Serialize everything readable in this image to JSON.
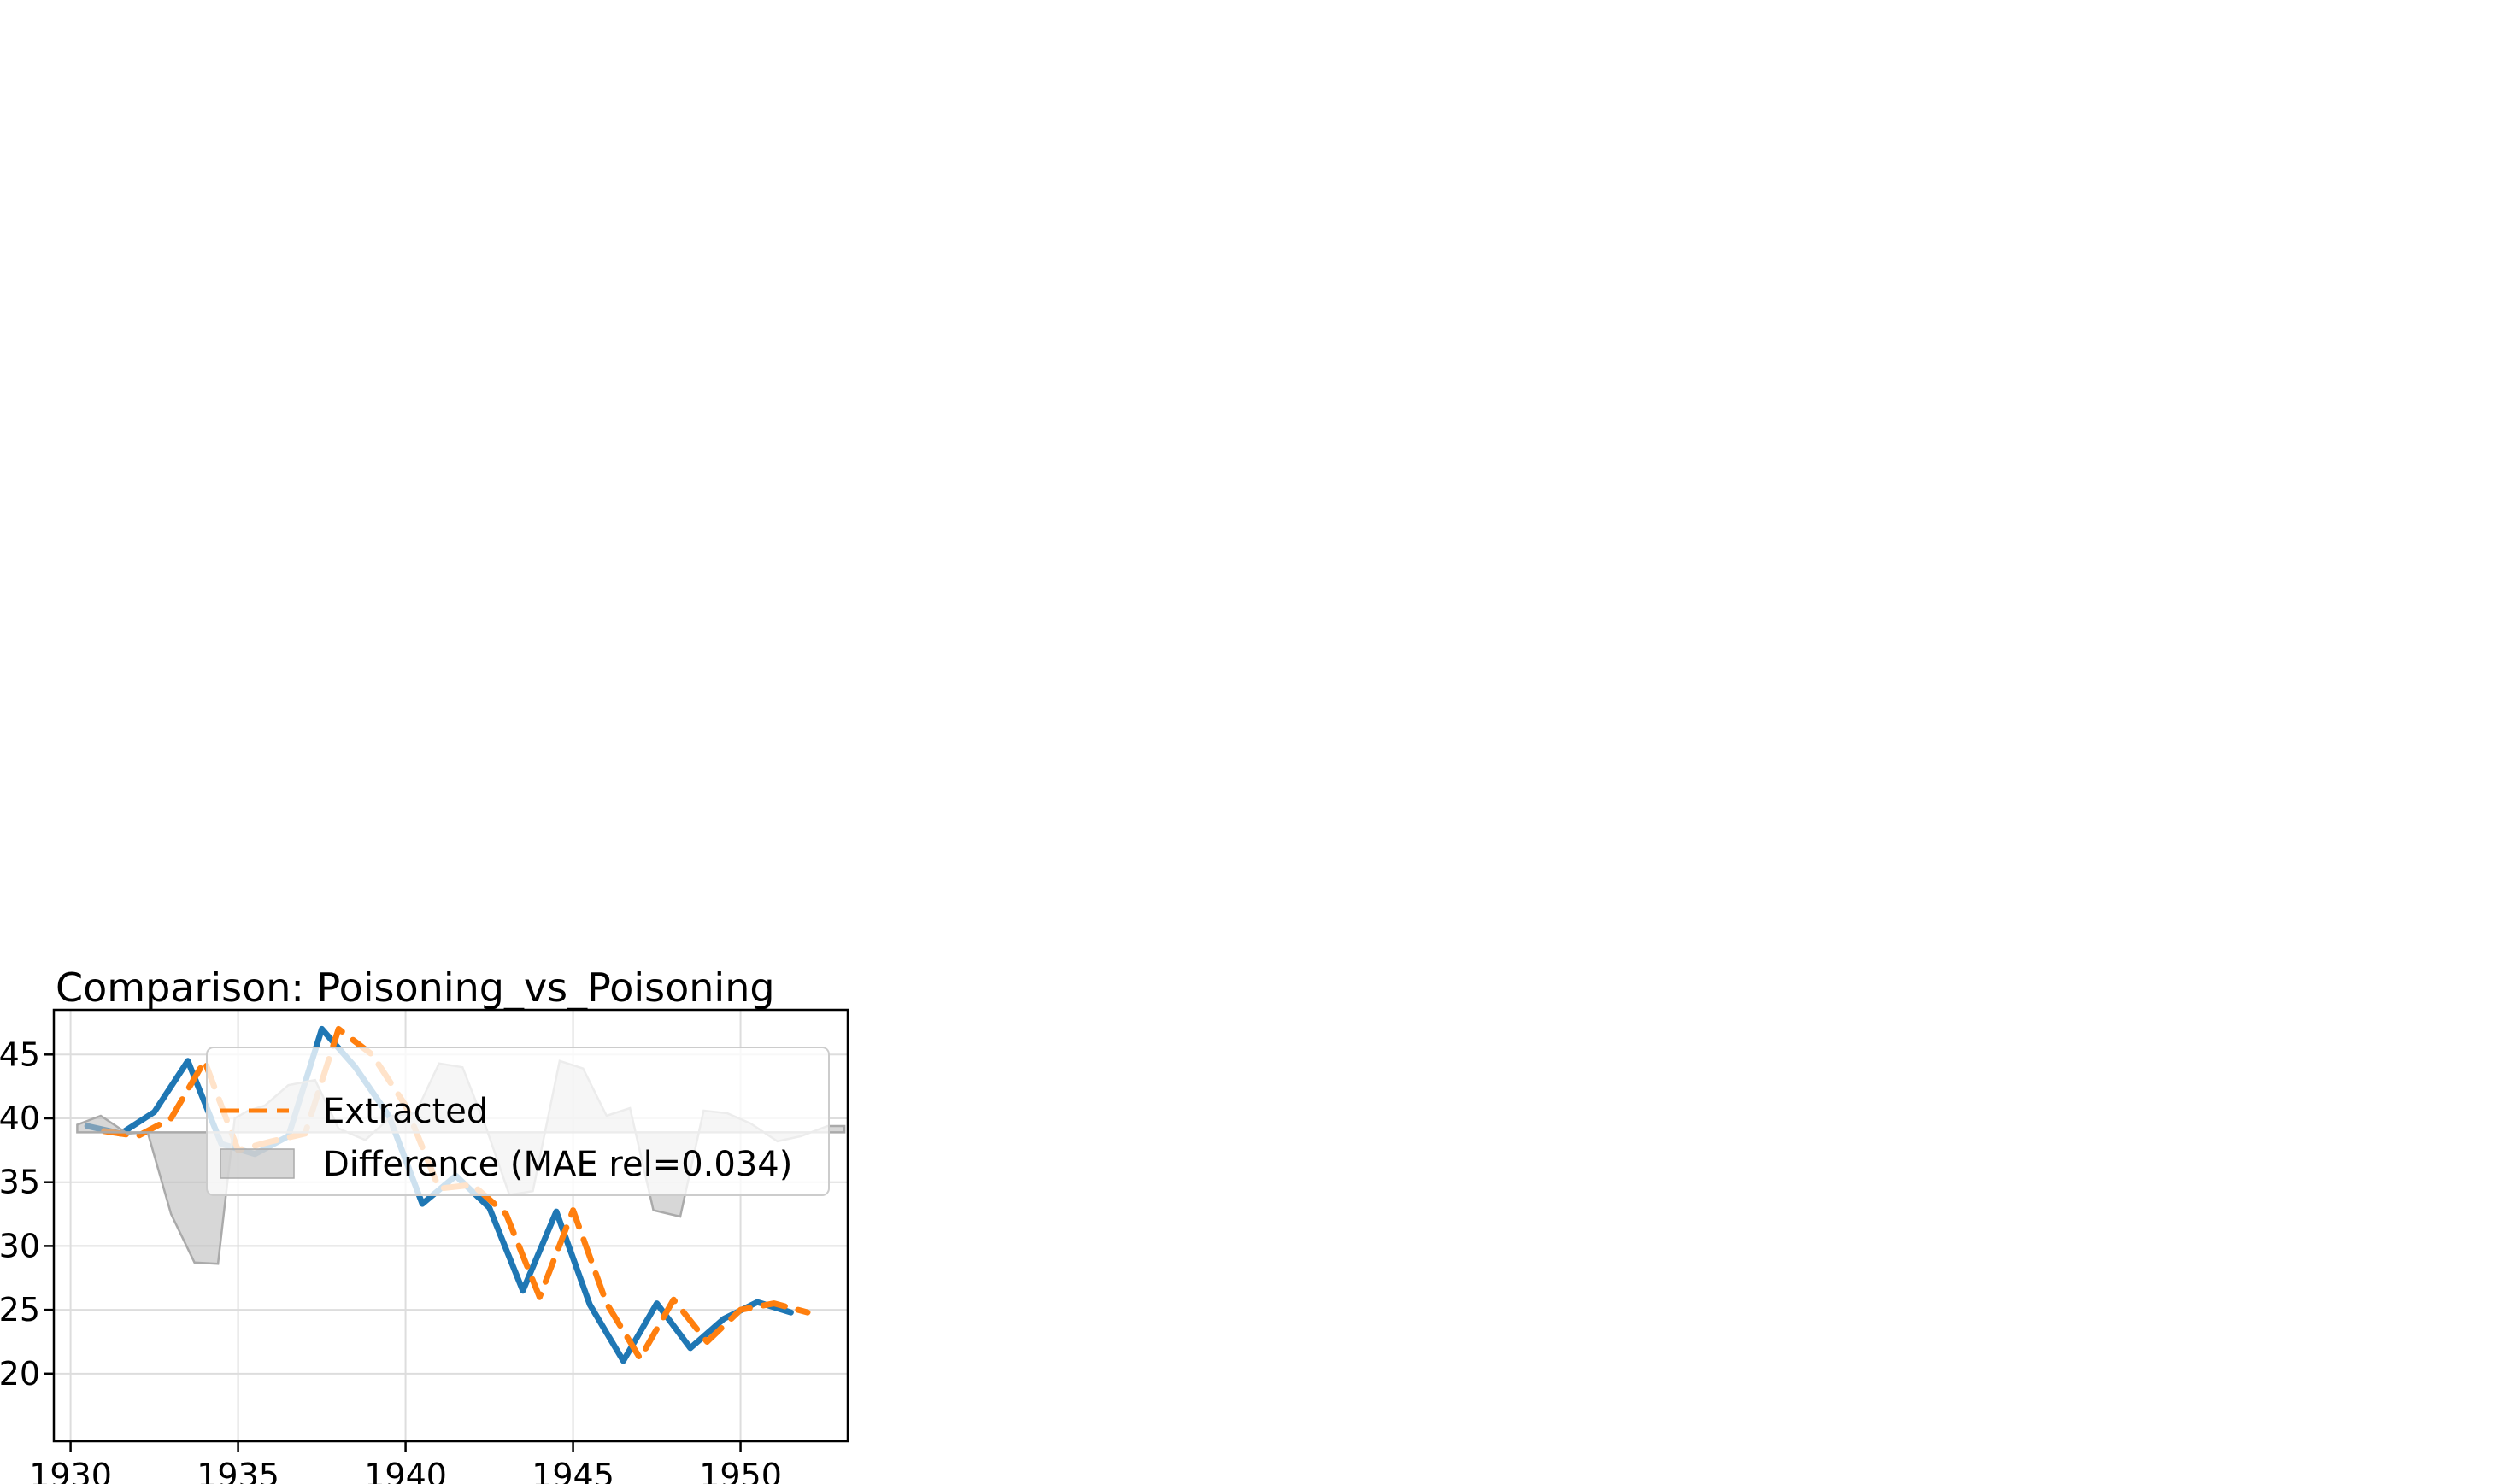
{
  "chart_data": {
    "type": "line",
    "title": "Comparison: Poisoning_vs_Poisoning",
    "xlabel": "",
    "ylabel": "",
    "xlim": [
      1929.5,
      1953.2
    ],
    "ylim": [
      14.7,
      48.5
    ],
    "xticks": [
      1930,
      1935,
      1940,
      1945,
      1950
    ],
    "yticks": [
      20,
      25,
      30,
      35,
      40,
      45
    ],
    "grid": true,
    "legend_position": "upper-right",
    "series": [
      {
        "name": "",
        "color": "#1f77b4",
        "style": "solid",
        "x": [
          1930.5,
          1931.5,
          1932.5,
          1933.5,
          1934.5,
          1935.5,
          1936.5,
          1937.5,
          1938.5,
          1939.5,
          1940.5,
          1941.5,
          1942.5,
          1943.5,
          1944.5,
          1945.5,
          1946.5,
          1947.5,
          1948.5,
          1949.5,
          1950.5,
          1951.5
        ],
        "values": [
          39.4,
          38.8,
          40.5,
          44.5,
          38.0,
          37.2,
          38.6,
          47.0,
          44.0,
          40.2,
          33.3,
          35.5,
          33.0,
          26.5,
          32.7,
          25.4,
          21.0,
          25.5,
          22.0,
          24.3,
          25.6,
          24.8
        ]
      },
      {
        "name": "Extracted",
        "color": "#ff7f0e",
        "style": "dashed",
        "x": [
          1931.0,
          1932.0,
          1933.0,
          1934.0,
          1935.0,
          1936.0,
          1937.0,
          1938.0,
          1939.0,
          1940.0,
          1941.0,
          1942.0,
          1943.0,
          1944.0,
          1945.0,
          1946.0,
          1947.0,
          1948.0,
          1949.0,
          1950.0,
          1951.0,
          1952.0
        ],
        "values": [
          39.0,
          38.6,
          40.0,
          44.5,
          37.5,
          38.2,
          38.8,
          47.0,
          45.0,
          41.0,
          34.5,
          34.8,
          32.5,
          26.0,
          32.8,
          25.5,
          21.2,
          25.8,
          22.5,
          25.0,
          25.5,
          24.8
        ]
      }
    ],
    "difference": {
      "name": "Difference (MAE rel=0.034)",
      "color": "#bdbdbd",
      "baseline": 38.9,
      "x": [
        1930.2,
        1930.9,
        1931.7,
        1932.3,
        1933.0,
        1933.7,
        1934.4,
        1934.9,
        1935.3,
        1935.8,
        1936.5,
        1937.3,
        1938.0,
        1938.8,
        1939.6,
        1940.3,
        1941.0,
        1941.7,
        1942.4,
        1943.1,
        1943.8,
        1944.6,
        1945.3,
        1946.0,
        1946.7,
        1947.4,
        1948.2,
        1948.9,
        1949.6,
        1950.3,
        1951.1,
        1951.8,
        1952.6,
        1953.1
      ],
      "values": [
        39.5,
        40.2,
        38.8,
        38.9,
        32.5,
        28.7,
        28.6,
        40.0,
        40.6,
        41.0,
        42.6,
        43.0,
        39.2,
        38.3,
        40.2,
        40.4,
        44.3,
        44.0,
        39.3,
        34.0,
        34.3,
        44.5,
        43.9,
        40.2,
        40.8,
        32.8,
        32.3,
        40.6,
        40.4,
        39.6,
        38.2,
        38.6,
        39.4,
        39.4
      ]
    }
  }
}
